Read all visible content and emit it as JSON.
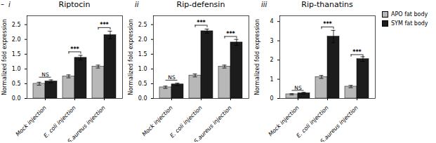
{
  "chart_data": [
    {
      "type": "bar",
      "title": "Riptocin",
      "panel_label": "i",
      "y_label": "Normalized fold expression",
      "categories": [
        "Mock injection",
        "E. coli injection",
        "S.aureus injection"
      ],
      "series": [
        {
          "name": "APO fat body",
          "color": "#b8b8b8",
          "values": [
            0.5,
            0.75,
            1.08
          ],
          "errors": [
            0.05,
            0.05,
            0.05
          ]
        },
        {
          "name": "SYM fat body",
          "color": "#1c1c1c",
          "values": [
            0.58,
            1.38,
            2.15
          ],
          "errors": [
            0.05,
            0.08,
            0.13
          ]
        }
      ],
      "ylim": [
        0,
        2.8
      ],
      "yticks": [
        {
          "value": 0.0,
          "label": "0.0"
        },
        0.5,
        {
          "value": 1.0,
          "label": "1.0"
        },
        1.5,
        {
          "value": 2.0,
          "label": "2.0"
        },
        2.5
      ],
      "annotations": [
        {
          "text": "NS",
          "category": "Mock injection",
          "y": 0.72,
          "line_style": "line"
        },
        {
          "text": "***",
          "category": "E. coli injection",
          "y": 1.58,
          "line_style": "bracket"
        },
        {
          "text": "***",
          "category": "S.aureus injection",
          "y": 2.4,
          "line_style": "bracket"
        },
        {
          "text": "–"
        }
      ]
    },
    {
      "type": "bar",
      "title": "Rip-defensin",
      "panel_label": "ii",
      "y_label": "Normalized fold expression",
      "categories": [
        "Mock injection",
        "E. coli injection",
        "S.aureus injection"
      ],
      "series": [
        {
          "name": "APO fat body",
          "color": "#b8b8b8",
          "values": [
            0.38,
            0.78,
            1.08
          ],
          "errors": [
            0.04,
            0.05,
            0.05
          ]
        },
        {
          "name": "SYM fat body",
          "color": "#1c1c1c",
          "values": [
            0.48,
            2.28,
            1.9
          ],
          "errors": [
            0.04,
            0.07,
            0.1
          ]
        }
      ],
      "ylim": [
        0,
        2.8
      ],
      "yticks": [
        {
          "value": 0.0,
          "label": "0.0"
        },
        0.5,
        {
          "value": 1.0,
          "label": "1.0"
        },
        1.5,
        {
          "value": 2.0,
          "label": "2.0"
        },
        2.5
      ],
      "annotations": [
        {
          "text": "NS",
          "category": "Mock injection",
          "y": 0.62,
          "line_style": "line"
        },
        {
          "text": "***",
          "category": "E. coli injection",
          "y": 2.48,
          "line_style": "bracket"
        },
        {
          "text": "***",
          "category": "S.aureus injection",
          "y": 2.1,
          "line_style": "bracket"
        }
      ]
    },
    {
      "type": "bar",
      "title": "Rip-thanatins",
      "panel_label": "iii",
      "y_label": "Normalized fold expression",
      "categories": [
        "Mock injection",
        "E. coli injection",
        "S.aureus injection"
      ],
      "series": [
        {
          "name": "APO fat body",
          "color": "#b8b8b8",
          "values": [
            0.22,
            1.12,
            0.62
          ],
          "errors": [
            0.03,
            0.08,
            0.06
          ]
        },
        {
          "name": "SYM fat body",
          "color": "#1c1c1c",
          "values": [
            0.28,
            3.22,
            2.05
          ],
          "errors": [
            0.04,
            0.32,
            0.12
          ]
        }
      ],
      "ylim": [
        0,
        4.3
      ],
      "yticks": [
        0,
        1,
        2,
        3,
        4
      ],
      "legend": "upper right",
      "annotations": [
        {
          "text": "NS",
          "category": "Mock injection",
          "y": 0.42,
          "line_style": "line"
        },
        {
          "text": "***",
          "category": "E. coli injection",
          "y": 3.72,
          "line_style": "bracket"
        },
        {
          "text": "***",
          "category": "S.aureus injection",
          "y": 2.28,
          "line_style": "bracket"
        }
      ]
    }
  ]
}
